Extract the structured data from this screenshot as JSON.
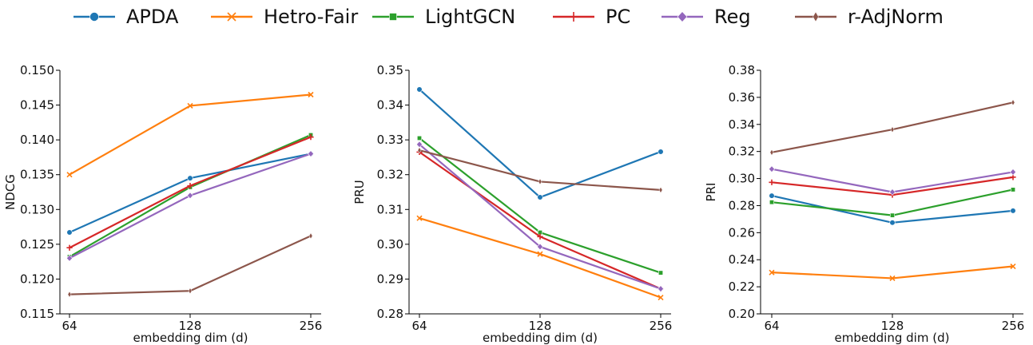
{
  "colors": {
    "APDA": "#1f77b4",
    "Hetro-Fair": "#ff7f0e",
    "LightGCN": "#2ca02c",
    "PC": "#d62728",
    "Reg": "#9467bd",
    "r-AdjNorm": "#8c564b"
  },
  "legend": [
    {
      "name": "APDA",
      "marker": "circle"
    },
    {
      "name": "Hetro-Fair",
      "marker": "x"
    },
    {
      "name": "LightGCN",
      "marker": "square"
    },
    {
      "name": "PC",
      "marker": "plus"
    },
    {
      "name": "Reg",
      "marker": "diamond"
    },
    {
      "name": "r-AdjNorm",
      "marker": "thin-diamond"
    }
  ],
  "chart_data": [
    {
      "type": "line",
      "xlabel": "embedding dim (d)",
      "ylabel": "NDCG",
      "categories": [
        "64",
        "128",
        "256"
      ],
      "x": [
        64,
        128,
        256
      ],
      "ylim": [
        0.115,
        0.15
      ],
      "yticks": [
        "0.115",
        "0.120",
        "0.125",
        "0.130",
        "0.135",
        "0.140",
        "0.145",
        "0.150"
      ],
      "series": [
        {
          "name": "APDA",
          "values": [
            0.1267,
            0.1345,
            0.138
          ]
        },
        {
          "name": "Hetro-Fair",
          "values": [
            0.135,
            0.1449,
            0.1465
          ]
        },
        {
          "name": "LightGCN",
          "values": [
            0.1232,
            0.1332,
            0.1407
          ]
        },
        {
          "name": "PC",
          "values": [
            0.1245,
            0.1334,
            0.1404
          ]
        },
        {
          "name": "Reg",
          "values": [
            0.123,
            0.132,
            0.138
          ]
        },
        {
          "name": "r-AdjNorm",
          "values": [
            0.1178,
            0.1183,
            0.1262
          ]
        }
      ]
    },
    {
      "type": "line",
      "xlabel": "embedding dim (d)",
      "ylabel": "PRU",
      "categories": [
        "64",
        "128",
        "256"
      ],
      "x": [
        64,
        128,
        256
      ],
      "ylim": [
        0.28,
        0.35
      ],
      "yticks": [
        "0.28",
        "0.29",
        "0.30",
        "0.31",
        "0.32",
        "0.33",
        "0.34",
        "0.35"
      ],
      "series": [
        {
          "name": "APDA",
          "values": [
            0.3445,
            0.3135,
            0.3266
          ]
        },
        {
          "name": "Hetro-Fair",
          "values": [
            0.3075,
            0.2972,
            0.2847
          ]
        },
        {
          "name": "LightGCN",
          "values": [
            0.3305,
            0.3034,
            0.2918
          ]
        },
        {
          "name": "PC",
          "values": [
            0.3265,
            0.3022,
            0.2872
          ]
        },
        {
          "name": "Reg",
          "values": [
            0.3287,
            0.2993,
            0.2872
          ]
        },
        {
          "name": "r-AdjNorm",
          "values": [
            0.327,
            0.318,
            0.3156
          ]
        }
      ]
    },
    {
      "type": "line",
      "xlabel": "embedding dim (d)",
      "ylabel": "PRI",
      "categories": [
        "64",
        "128",
        "256"
      ],
      "x": [
        64,
        128,
        256
      ],
      "ylim": [
        0.2,
        0.38
      ],
      "yticks": [
        "0.20",
        "0.22",
        "0.24",
        "0.26",
        "0.28",
        "0.30",
        "0.32",
        "0.34",
        "0.36",
        "0.38"
      ],
      "series": [
        {
          "name": "APDA",
          "values": [
            0.2873,
            0.2674,
            0.2762
          ]
        },
        {
          "name": "Hetro-Fair",
          "values": [
            0.2306,
            0.2263,
            0.2351
          ]
        },
        {
          "name": "LightGCN",
          "values": [
            0.2825,
            0.2728,
            0.2918
          ]
        },
        {
          "name": "PC",
          "values": [
            0.2972,
            0.2879,
            0.301
          ]
        },
        {
          "name": "Reg",
          "values": [
            0.307,
            0.29,
            0.3048
          ]
        },
        {
          "name": "r-AdjNorm",
          "values": [
            0.3193,
            0.3362,
            0.3562
          ]
        }
      ]
    }
  ]
}
